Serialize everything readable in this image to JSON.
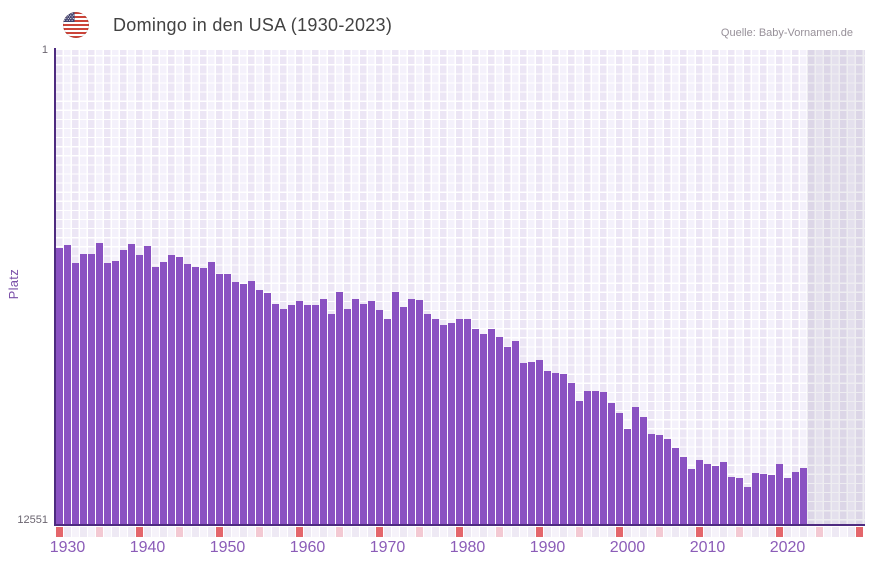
{
  "header": {
    "title": "Domingo in den USA (1930-2023)",
    "source": "Quelle: Baby-Vornamen.de",
    "flag_icon": "us-flag"
  },
  "colors": {
    "bar": "#8a52c2",
    "axis": "#4e2b80",
    "major_tick": "#e4666b",
    "minor_tick": "#f3c9d3",
    "tick_cell_even": "#f6f3fa",
    "tick_cell_odd": "#eee9f4",
    "x_label": "#8b5cb8",
    "y_label": "#6b6570",
    "axis_title": "#7a4fa8",
    "plot_cell_even": "#ece6f5",
    "plot_cell_odd": "#f4f1fb"
  },
  "chart_data": {
    "type": "bar",
    "title": "Domingo in den USA (1930-2023)",
    "xlabel": "",
    "ylabel": "Platz",
    "y_axis": {
      "min": 1,
      "max": 12551,
      "min_label": "1",
      "max_label": "12551",
      "inverted": true,
      "note": "rank 1 at top; taller bar = better rank"
    },
    "x_axis": {
      "tick_labels": [
        "1930",
        "1940",
        "1950",
        "1960",
        "1970",
        "1980",
        "1990",
        "2000",
        "2010",
        "2020"
      ],
      "major_tick_interval": 10,
      "minor_tick_interval": 5,
      "axis_extends_to_year": 2030,
      "future_shaded_from_year": 2024
    },
    "legend": null,
    "grid": true,
    "start_year": 1930,
    "end_year": 2023,
    "years": [
      1930,
      1931,
      1932,
      1933,
      1934,
      1935,
      1936,
      1937,
      1938,
      1939,
      1940,
      1941,
      1942,
      1943,
      1944,
      1945,
      1946,
      1947,
      1948,
      1949,
      1950,
      1951,
      1952,
      1953,
      1954,
      1955,
      1956,
      1957,
      1958,
      1959,
      1960,
      1961,
      1962,
      1963,
      1964,
      1965,
      1966,
      1967,
      1968,
      1969,
      1970,
      1971,
      1972,
      1973,
      1974,
      1975,
      1976,
      1977,
      1978,
      1979,
      1980,
      1981,
      1982,
      1983,
      1984,
      1985,
      1986,
      1987,
      1988,
      1989,
      1990,
      1991,
      1992,
      1993,
      1994,
      1995,
      1996,
      1997,
      1998,
      1999,
      2000,
      2001,
      2002,
      2003,
      2004,
      2005,
      2006,
      2007,
      2008,
      2009,
      2010,
      2011,
      2012,
      2013,
      2014,
      2015,
      2016,
      2017,
      2018,
      2019,
      2020,
      2021,
      2022,
      2023
    ],
    "values": [
      5254,
      5174,
      5652,
      5413,
      5413,
      5121,
      5652,
      5599,
      5307,
      5148,
      5440,
      5201,
      5758,
      5625,
      5440,
      5493,
      5678,
      5758,
      5784,
      5625,
      5943,
      5943,
      6155,
      6208,
      6129,
      6341,
      6421,
      6713,
      6845,
      6739,
      6633,
      6739,
      6739,
      6580,
      6978,
      6394,
      6845,
      6580,
      6713,
      6633,
      6872,
      7110,
      6394,
      6792,
      6580,
      6606,
      6978,
      7110,
      7270,
      7217,
      7110,
      7110,
      7376,
      7508,
      7376,
      7588,
      7854,
      7694,
      8278,
      8251,
      8198,
      8490,
      8543,
      8570,
      8808,
      9286,
      9020,
      9020,
      9047,
      9339,
      9604,
      10029,
      9445,
      9710,
      10161,
      10187,
      10294,
      10532,
      10771,
      11089,
      10851,
      10957,
      11010,
      10904,
      11302,
      11328,
      11567,
      11196,
      11222,
      11249,
      10957,
      11328,
      11169,
      11063
    ]
  }
}
